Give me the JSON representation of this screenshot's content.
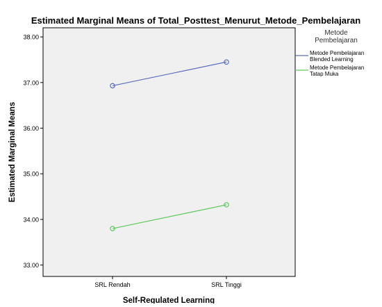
{
  "chart_data": {
    "type": "line",
    "title": "Estimated Marginal Means of Total_Posttest_Menurut_Metode_Pembelajaran",
    "xlabel": "Self-Regulated Learning",
    "ylabel": "Estimated Marginal Means",
    "categories": [
      "SRL Rendah",
      "SRL Tinggi"
    ],
    "ylim": [
      32.75,
      38.2
    ],
    "yticks": [
      33.0,
      34.0,
      35.0,
      36.0,
      37.0,
      38.0
    ],
    "ytick_labels": [
      "33.00",
      "34.00",
      "35.00",
      "36.00",
      "37.00",
      "38.00"
    ],
    "grid": false,
    "legend_position": "right",
    "legend_title": "Metode Pembelajaran",
    "series": [
      {
        "name": "Metode Pembelajaran Blended Learning",
        "color": "#5b6cc0",
        "values": [
          36.93,
          37.45
        ]
      },
      {
        "name": "Metode Pembelajaran Tatap Muka",
        "color": "#5ec95e",
        "values": [
          33.8,
          34.32
        ]
      }
    ],
    "plot_background": "#f0f0f0"
  }
}
